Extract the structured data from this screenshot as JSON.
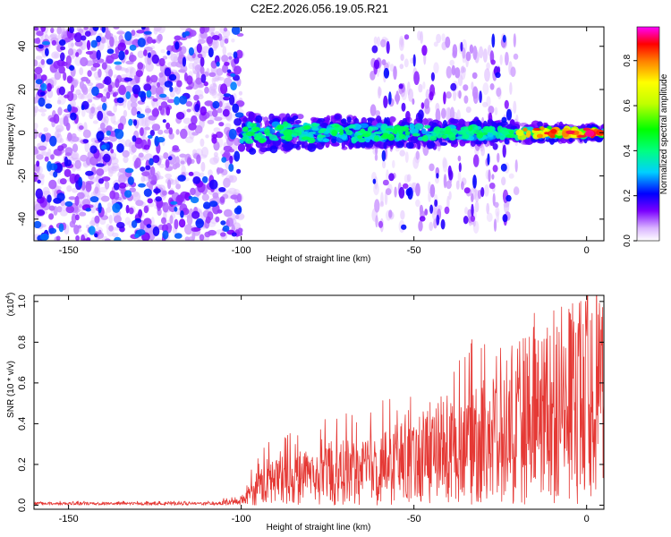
{
  "title": "C2E2.2026.056.19.05.R21",
  "colors": {
    "signal_line": "#e53935",
    "axis": "#000000",
    "background": "#ffffff"
  },
  "chart_data": [
    {
      "type": "heatmap",
      "title": "C2E2.2026.056.19.05.R21",
      "xlabel": "Height of straight line (km)",
      "ylabel": "Frequency (Hz)",
      "xlim": [
        -160,
        5
      ],
      "ylim": [
        -50,
        49
      ],
      "x_ticks": [
        -150,
        -100,
        -50,
        0
      ],
      "x_tick_labels": [
        "-150",
        "-100",
        "-50",
        "0"
      ],
      "y_ticks": [
        -40,
        -20,
        0,
        20,
        40
      ],
      "y_tick_labels": [
        "-40",
        "-20",
        "0",
        "20",
        "40"
      ],
      "colorbar": {
        "label": "Normalized spectral amplitude",
        "range": [
          0,
          0.95
        ],
        "ticks": [
          0.0,
          0.2,
          0.4,
          0.6,
          0.8
        ],
        "tick_labels": [
          "0.0",
          "0.2",
          "0.4",
          "0.6",
          "0.8"
        ]
      },
      "regions": [
        {
          "name": "broadband noise",
          "x_range": [
            -160,
            -100
          ],
          "freq_range": [
            -50,
            49
          ],
          "amplitude": 0.15
        },
        {
          "name": "main line",
          "x_range": [
            -100,
            5
          ],
          "freq_center": 0,
          "amplitude_peak": 0.85
        },
        {
          "name": "sidebands",
          "x_range": [
            -62,
            -20
          ],
          "freq_range": [
            -45,
            45
          ],
          "amplitude": 0.12
        }
      ]
    },
    {
      "type": "line",
      "xlabel": "Height of straight line (km)",
      "ylabel": "SNR (10 * v/v)",
      "y_multiplier_label": "(x10",
      "y_multiplier_exp": "4",
      "y_multiplier_close": ")",
      "xlim": [
        -160,
        5
      ],
      "ylim": [
        -0.02,
        1.03
      ],
      "x_ticks": [
        -150,
        -100,
        -50,
        0
      ],
      "x_tick_labels": [
        "-150",
        "-100",
        "-50",
        "0"
      ],
      "y_ticks": [
        0.0,
        0.2,
        0.4,
        0.6,
        0.8,
        1.0
      ],
      "y_tick_labels": [
        "0.0",
        "0.2",
        "0.4",
        "0.6",
        "0.8",
        "1.0"
      ],
      "series": [
        {
          "name": "SNR",
          "envelope_points": [
            {
              "x": -160,
              "mean": 0.01,
              "peak": 0.02
            },
            {
              "x": -110,
              "mean": 0.01,
              "peak": 0.02
            },
            {
              "x": -100,
              "mean": 0.02,
              "peak": 0.05
            },
            {
              "x": -95,
              "mean": 0.12,
              "peak": 0.3
            },
            {
              "x": -85,
              "mean": 0.18,
              "peak": 0.38
            },
            {
              "x": -70,
              "mean": 0.2,
              "peak": 0.45
            },
            {
              "x": -60,
              "mean": 0.25,
              "peak": 0.52
            },
            {
              "x": -50,
              "mean": 0.28,
              "peak": 0.55
            },
            {
              "x": -40,
              "mean": 0.35,
              "peak": 0.62
            },
            {
              "x": -35,
              "mean": 0.4,
              "peak": 0.82
            },
            {
              "x": -20,
              "mean": 0.45,
              "peak": 0.78
            },
            {
              "x": -15,
              "mean": 0.55,
              "peak": 1.03
            },
            {
              "x": -5,
              "mean": 0.65,
              "peak": 1.02
            },
            {
              "x": 0,
              "mean": 0.82,
              "peak": 1.0
            },
            {
              "x": 5,
              "mean": 0.85,
              "peak": 0.98
            }
          ]
        }
      ]
    }
  ]
}
